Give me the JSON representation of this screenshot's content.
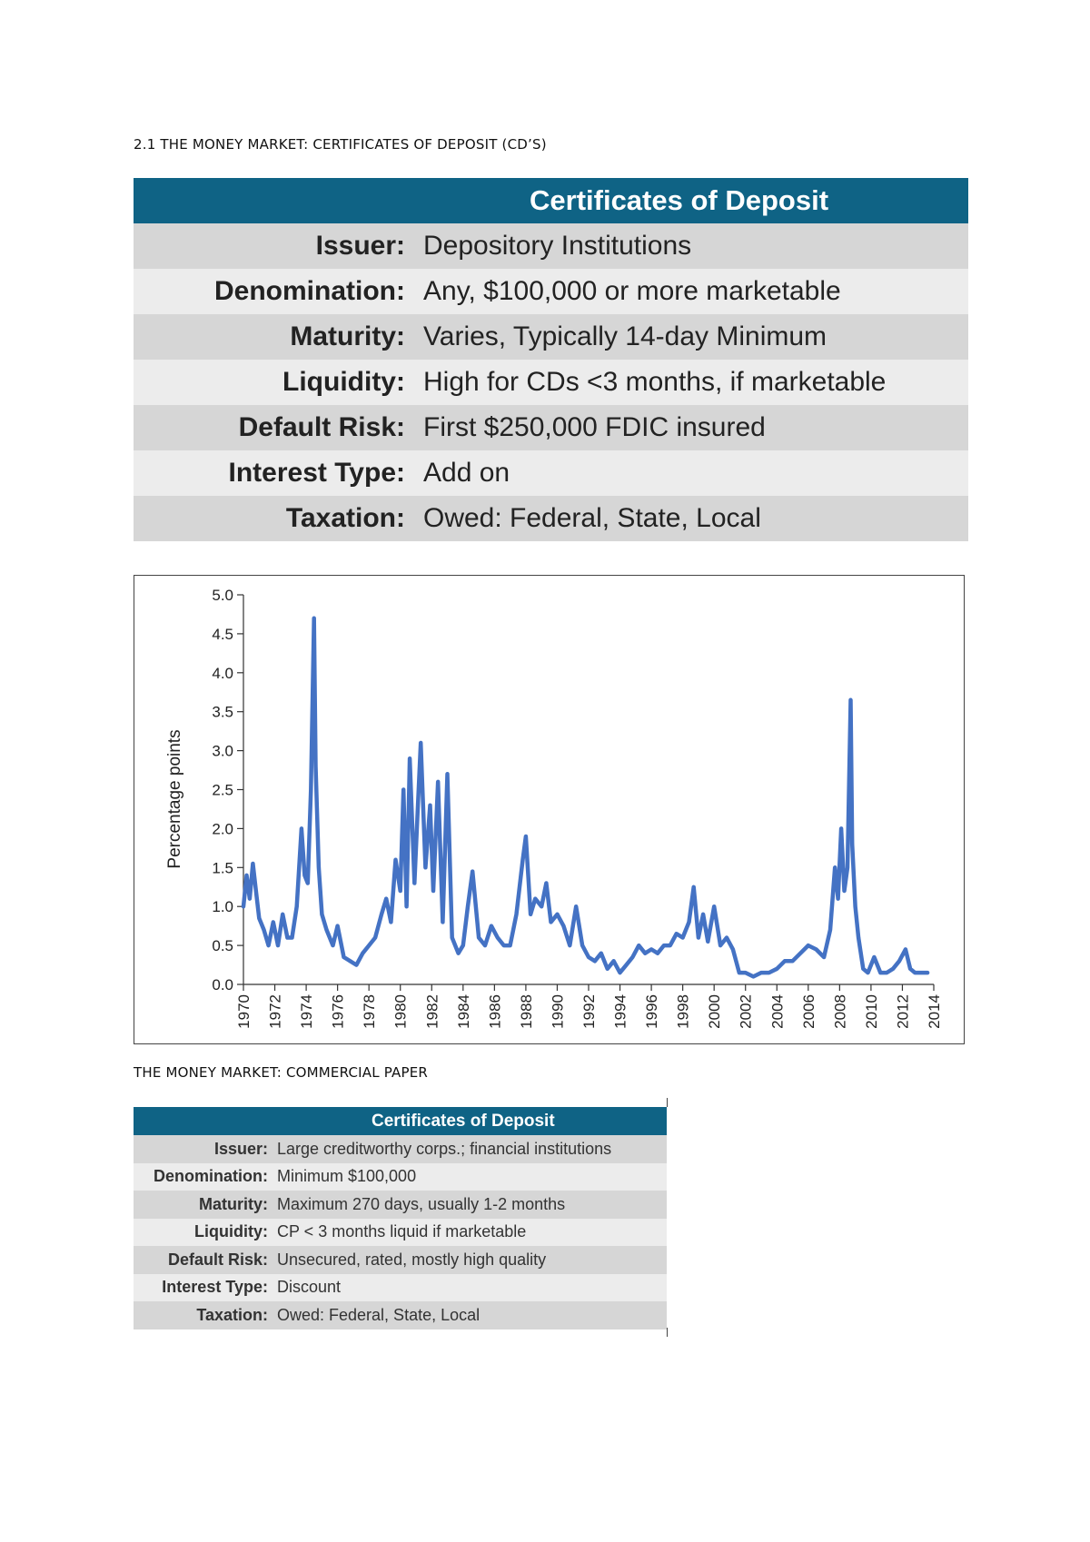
{
  "section1": {
    "heading": "2.1 THE MONEY MARKET: CERTIFICATES OF DEPOSIT (CD’S)"
  },
  "table1": {
    "header": "Certificates of Deposit",
    "rows": [
      {
        "label": "Issuer:",
        "value": "Depository Institutions"
      },
      {
        "label": "Denomination:",
        "value": "Any, $100,000 or more marketable"
      },
      {
        "label": "Maturity:",
        "value": "Varies, Typically 14-day Minimum"
      },
      {
        "label": "Liquidity:",
        "value": "High for CDs <3 months, if marketable"
      },
      {
        "label": "Default Risk:",
        "value": "First $250,000 FDIC insured"
      },
      {
        "label": "Interest Type:",
        "value": "Add on"
      },
      {
        "label": "Taxation:",
        "value": "Owed: Federal, State, Local"
      }
    ]
  },
  "chart_data": {
    "type": "line",
    "title": "",
    "xlabel": "",
    "ylabel": "Percentage points",
    "xlim": [
      1970,
      2014
    ],
    "ylim": [
      0,
      5
    ],
    "x_ticks": [
      "1970",
      "1972",
      "1974",
      "1976",
      "1978",
      "1980",
      "1982",
      "1984",
      "1986",
      "1988",
      "1990",
      "1992",
      "1994",
      "1996",
      "1998",
      "2000",
      "2002",
      "2004",
      "2006",
      "2008",
      "2010",
      "2012",
      "2014"
    ],
    "y_ticks": [
      "0.0",
      "0.5",
      "1.0",
      "1.5",
      "2.0",
      "2.5",
      "3.0",
      "3.5",
      "4.0",
      "4.5",
      "5.0"
    ],
    "grid": false,
    "color": "#4472c4",
    "series": [
      {
        "x": [
          1970.0,
          1970.2,
          1970.4,
          1970.6,
          1970.8,
          1971.0,
          1971.3,
          1971.6,
          1971.9,
          1972.2,
          1972.5,
          1972.8,
          1973.1,
          1973.4,
          1973.7,
          1973.9,
          1974.1,
          1974.3,
          1974.5,
          1974.6,
          1974.8,
          1975.0,
          1975.3,
          1975.7,
          1976.0,
          1976.4,
          1976.8,
          1977.2,
          1977.6,
          1978.0,
          1978.4,
          1978.8,
          1979.1,
          1979.4,
          1979.7,
          1980.0,
          1980.2,
          1980.4,
          1980.6,
          1980.9,
          1981.1,
          1981.3,
          1981.6,
          1981.9,
          1982.1,
          1982.4,
          1982.7,
          1983.0,
          1983.3,
          1983.7,
          1984.0,
          1984.3,
          1984.6,
          1985.0,
          1985.4,
          1985.8,
          1986.2,
          1986.6,
          1987.0,
          1987.4,
          1987.8,
          1988.0,
          1988.3,
          1988.6,
          1989.0,
          1989.3,
          1989.6,
          1990.0,
          1990.4,
          1990.8,
          1991.2,
          1991.6,
          1992.0,
          1992.4,
          1992.8,
          1993.2,
          1993.6,
          1994.0,
          1994.4,
          1994.8,
          1995.2,
          1995.6,
          1996.0,
          1996.4,
          1996.8,
          1997.2,
          1997.6,
          1998.0,
          1998.4,
          1998.7,
          1999.0,
          1999.3,
          1999.6,
          2000.0,
          2000.4,
          2000.8,
          2001.2,
          2001.6,
          2002.0,
          2002.5,
          2003.0,
          2003.5,
          2004.0,
          2004.5,
          2005.0,
          2005.5,
          2006.0,
          2006.5,
          2007.0,
          2007.4,
          2007.7,
          2007.9,
          2008.1,
          2008.3,
          2008.5,
          2008.7,
          2008.8,
          2009.0,
          2009.2,
          2009.5,
          2009.8,
          2010.2,
          2010.6,
          2011.0,
          2011.4,
          2011.8,
          2012.2,
          2012.5,
          2012.8,
          2013.2,
          2013.6
        ],
        "values": [
          1.0,
          1.4,
          1.1,
          1.55,
          1.2,
          0.85,
          0.7,
          0.5,
          0.8,
          0.5,
          0.9,
          0.6,
          0.6,
          1.0,
          2.0,
          1.4,
          1.3,
          2.5,
          4.7,
          2.8,
          1.5,
          0.9,
          0.7,
          0.5,
          0.75,
          0.35,
          0.3,
          0.25,
          0.4,
          0.5,
          0.6,
          0.9,
          1.1,
          0.8,
          1.6,
          1.2,
          2.5,
          1.0,
          2.9,
          1.3,
          2.2,
          3.1,
          1.5,
          2.3,
          1.2,
          2.6,
          0.8,
          2.7,
          0.6,
          0.4,
          0.5,
          1.0,
          1.45,
          0.6,
          0.5,
          0.75,
          0.6,
          0.5,
          0.5,
          0.9,
          1.6,
          1.9,
          0.9,
          1.1,
          1.0,
          1.3,
          0.8,
          0.9,
          0.75,
          0.5,
          1.0,
          0.5,
          0.35,
          0.3,
          0.4,
          0.2,
          0.3,
          0.15,
          0.25,
          0.35,
          0.5,
          0.4,
          0.45,
          0.4,
          0.5,
          0.5,
          0.65,
          0.6,
          0.8,
          1.25,
          0.6,
          0.9,
          0.55,
          1.0,
          0.5,
          0.6,
          0.45,
          0.15,
          0.15,
          0.1,
          0.15,
          0.15,
          0.2,
          0.3,
          0.3,
          0.4,
          0.5,
          0.45,
          0.35,
          0.7,
          1.5,
          1.1,
          2.0,
          1.2,
          1.5,
          3.65,
          1.8,
          1.0,
          0.6,
          0.2,
          0.15,
          0.35,
          0.15,
          0.15,
          0.2,
          0.3,
          0.45,
          0.2,
          0.15,
          0.15,
          0.15
        ]
      }
    ]
  },
  "section2": {
    "heading": "THE MONEY MARKET: COMMERCIAL PAPER"
  },
  "table2": {
    "header": "Certificates of Deposit",
    "rows": [
      {
        "label": "Issuer:",
        "value": "Large creditworthy corps.; financial institutions"
      },
      {
        "label": "Denomination:",
        "value": "Minimum $100,000"
      },
      {
        "label": "Maturity:",
        "value": "Maximum 270 days, usually 1-2 months"
      },
      {
        "label": "Liquidity:",
        "value": "CP < 3 months liquid if marketable"
      },
      {
        "label": "Default Risk:",
        "value": "Unsecured, rated, mostly high quality"
      },
      {
        "label": "Interest Type:",
        "value": "Discount"
      },
      {
        "label": "Taxation:",
        "value": "Owed: Federal, State, Local"
      }
    ]
  }
}
